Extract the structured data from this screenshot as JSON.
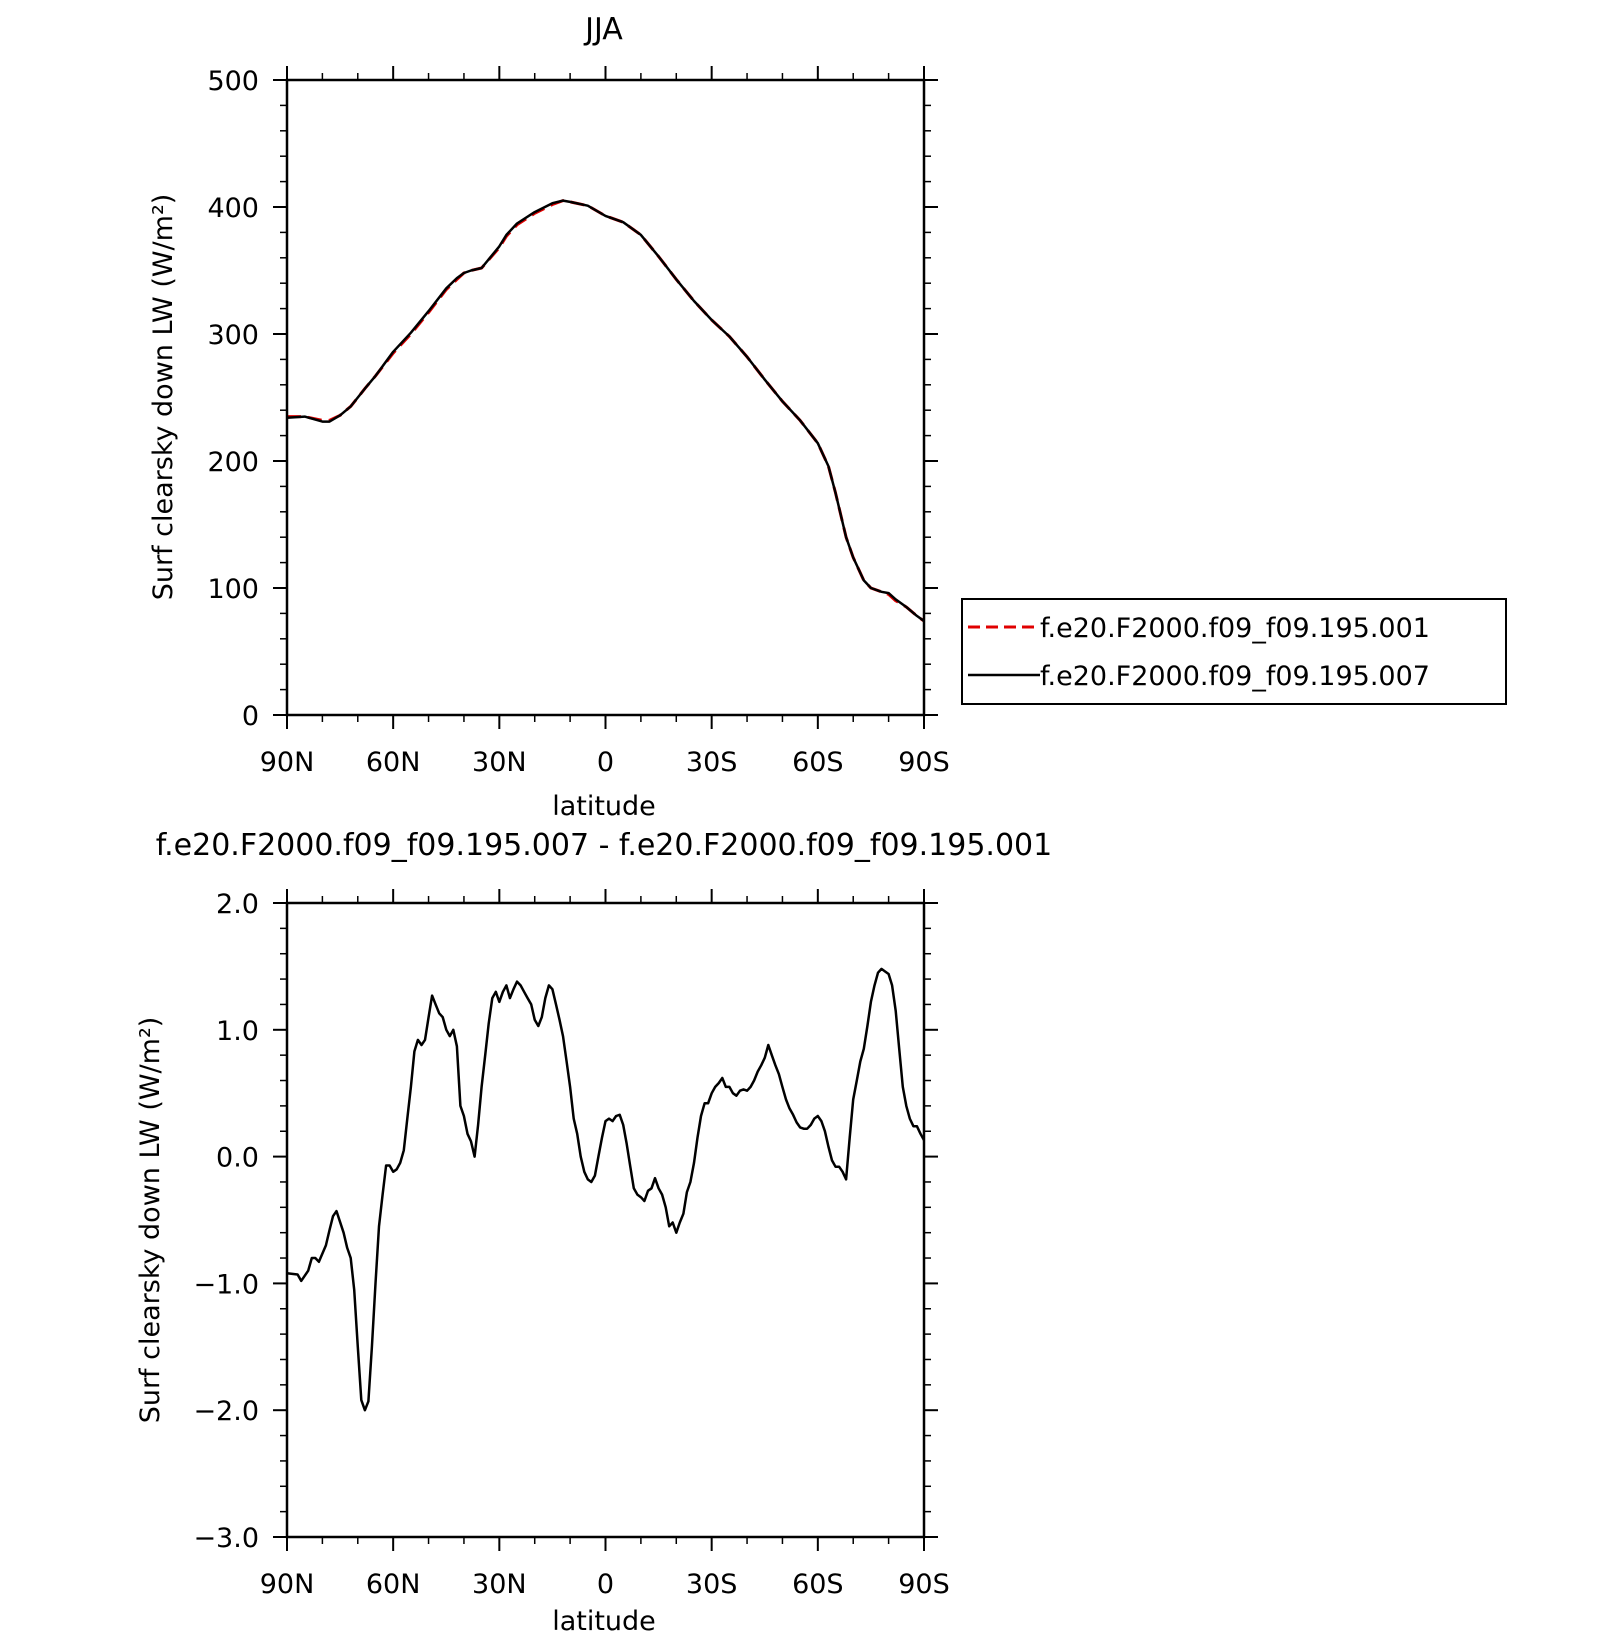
{
  "chart_data": [
    {
      "type": "line",
      "title": "JJA",
      "xlabel": "latitude",
      "ylabel": "Surf clearsky down LW (W/m²)",
      "xlim": [
        90,
        -90
      ],
      "ylim": [
        0,
        500
      ],
      "x_ticks": [
        90,
        60,
        30,
        0,
        -30,
        -60,
        -90
      ],
      "x_tick_labels": [
        "90N",
        "60N",
        "30N",
        "0",
        "30S",
        "60S",
        "90S"
      ],
      "y_ticks": [
        0,
        100,
        200,
        300,
        400,
        500
      ],
      "y_tick_labels": [
        "0",
        "100",
        "200",
        "300",
        "400",
        "500"
      ],
      "grid": false,
      "legend_position": "right",
      "series": [
        {
          "name": "f.e20.F2000.f09_f09.195.001",
          "color": "#e00000",
          "dash": "dashed",
          "x": [
            90,
            85,
            80,
            78,
            75,
            72,
            68,
            65,
            60,
            55,
            50,
            45,
            42,
            40,
            38,
            35,
            30,
            28,
            25,
            20,
            15,
            12,
            10,
            5,
            0,
            -5,
            -10,
            -15,
            -20,
            -25,
            -30,
            -35,
            -40,
            -45,
            -50,
            -55,
            -60,
            -63,
            -65,
            -68,
            -70,
            -73,
            -75,
            -78,
            -80,
            -82,
            -85,
            -88,
            -90
          ],
          "y": [
            235,
            235,
            232,
            232,
            236,
            243,
            257,
            267,
            285,
            300,
            317,
            335,
            343,
            348,
            350,
            352,
            368,
            377,
            386,
            395,
            402,
            405,
            404,
            401,
            393,
            388,
            378,
            361,
            343,
            326,
            311,
            298,
            282,
            264,
            247,
            232,
            214,
            196,
            175,
            140,
            124,
            106,
            100,
            97,
            95,
            90,
            85,
            78,
            74
          ]
        },
        {
          "name": "f.e20.F2000.f09_f09.195.007",
          "color": "#000000",
          "dash": "solid",
          "x": [
            90,
            85,
            80,
            78,
            75,
            72,
            68,
            65,
            60,
            55,
            50,
            45,
            42,
            40,
            38,
            35,
            30,
            28,
            25,
            20,
            15,
            12,
            10,
            5,
            0,
            -5,
            -10,
            -15,
            -20,
            -25,
            -30,
            -35,
            -40,
            -45,
            -50,
            -55,
            -60,
            -63,
            -65,
            -68,
            -70,
            -73,
            -75,
            -78,
            -80,
            -82,
            -85,
            -88,
            -90
          ],
          "y": [
            234,
            235,
            231,
            231,
            236,
            243,
            257,
            267,
            286,
            301,
            318,
            336,
            344,
            348,
            350,
            352,
            369,
            378,
            387,
            396,
            403,
            405,
            404,
            401,
            393,
            388,
            378,
            361,
            343,
            326,
            311,
            298,
            282,
            264,
            247,
            232,
            214,
            196,
            175,
            140,
            124,
            106,
            100,
            97,
            96,
            91,
            85,
            78,
            74
          ]
        }
      ]
    },
    {
      "type": "line",
      "title": "f.e20.F2000.f09_f09.195.007 - f.e20.F2000.f09_f09.195.001",
      "xlabel": "latitude",
      "ylabel": "Surf clearsky down LW (W/m²)",
      "xlim": [
        90,
        -90
      ],
      "ylim": [
        -3.0,
        2.0
      ],
      "x_ticks": [
        90,
        60,
        30,
        0,
        -30,
        -60,
        -90
      ],
      "x_tick_labels": [
        "90N",
        "60N",
        "30N",
        "0",
        "30S",
        "60S",
        "90S"
      ],
      "y_ticks": [
        -3.0,
        -2.0,
        -1.0,
        0.0,
        1.0,
        2.0
      ],
      "y_tick_labels": [
        "−3.0",
        "−2.0",
        "−1.0",
        "0.0",
        "1.0",
        "2.0"
      ],
      "grid": false,
      "series": [
        {
          "color": "#000000",
          "dash": "solid",
          "x": [
            90,
            87,
            86,
            84,
            83,
            82,
            81,
            79,
            78,
            77,
            76,
            74,
            73,
            72,
            71,
            70,
            69,
            68,
            67,
            66,
            65,
            64,
            63,
            62,
            61,
            60,
            59,
            58,
            57,
            56,
            55,
            54,
            53,
            52,
            51,
            50,
            49,
            48,
            47,
            46,
            45,
            44,
            43,
            42,
            41,
            40,
            39,
            38,
            37,
            36,
            35,
            34,
            33,
            32,
            31,
            30,
            29,
            28,
            27,
            26,
            25,
            24,
            23,
            22,
            21,
            20,
            19,
            18,
            17,
            16,
            15,
            14,
            13,
            12,
            11,
            10,
            9,
            8,
            7,
            6,
            5,
            4,
            3,
            2,
            1,
            0,
            -1,
            -2,
            -3,
            -4,
            -5,
            -6,
            -7,
            -8,
            -9,
            -10,
            -11,
            -12,
            -13,
            -14,
            -15,
            -16,
            -17,
            -18,
            -19,
            -20,
            -21,
            -22,
            -23,
            -24,
            -25,
            -26,
            -27,
            -28,
            -29,
            -30,
            -31,
            -32,
            -33,
            -34,
            -35,
            -36,
            -37,
            -38,
            -39,
            -40,
            -41,
            -42,
            -43,
            -44,
            -45,
            -46,
            -47,
            -48,
            -49,
            -50,
            -51,
            -52,
            -53,
            -54,
            -55,
            -56,
            -57,
            -58,
            -59,
            -60,
            -61,
            -62,
            -63,
            -64,
            -65,
            -66,
            -67,
            -68,
            -69,
            -70,
            -71,
            -72,
            -73,
            -74,
            -75,
            -76,
            -77,
            -78,
            -79,
            -80,
            -81,
            -82,
            -83,
            -84,
            -85,
            -86,
            -87,
            -88,
            -89,
            -90
          ],
          "y": [
            -0.92,
            -0.93,
            -0.98,
            -0.9,
            -0.8,
            -0.8,
            -0.83,
            -0.7,
            -0.58,
            -0.47,
            -0.43,
            -0.6,
            -0.72,
            -0.8,
            -1.05,
            -1.5,
            -1.92,
            -2.0,
            -1.93,
            -1.5,
            -1.0,
            -0.55,
            -0.3,
            -0.07,
            -0.07,
            -0.12,
            -0.1,
            -0.05,
            0.05,
            0.3,
            0.55,
            0.83,
            0.92,
            0.88,
            0.92,
            1.1,
            1.27,
            1.2,
            1.13,
            1.1,
            1.0,
            0.95,
            1.0,
            0.87,
            0.4,
            0.32,
            0.18,
            0.12,
            0.0,
            0.25,
            0.55,
            0.8,
            1.05,
            1.25,
            1.3,
            1.22,
            1.3,
            1.35,
            1.25,
            1.32,
            1.38,
            1.35,
            1.3,
            1.25,
            1.2,
            1.08,
            1.03,
            1.1,
            1.25,
            1.35,
            1.32,
            1.2,
            1.08,
            0.95,
            0.75,
            0.55,
            0.3,
            0.18,
            0.0,
            -0.12,
            -0.18,
            -0.2,
            -0.15,
            0.0,
            0.15,
            0.28,
            0.3,
            0.28,
            0.32,
            0.33,
            0.25,
            0.1,
            -0.08,
            -0.25,
            -0.3,
            -0.32,
            -0.35,
            -0.27,
            -0.25,
            -0.17,
            -0.25,
            -0.3,
            -0.4,
            -0.55,
            -0.52,
            -0.6,
            -0.52,
            -0.45,
            -0.28,
            -0.2,
            -0.05,
            0.15,
            0.32,
            0.42,
            0.42,
            0.5,
            0.55,
            0.58,
            0.62,
            0.55,
            0.55,
            0.5,
            0.48,
            0.52,
            0.53,
            0.52,
            0.55,
            0.6,
            0.67,
            0.72,
            0.78,
            0.88,
            0.8,
            0.72,
            0.65,
            0.55,
            0.45,
            0.38,
            0.33,
            0.27,
            0.23,
            0.22,
            0.22,
            0.25,
            0.3,
            0.32,
            0.28,
            0.2,
            0.08,
            -0.03,
            -0.08,
            -0.08,
            -0.12,
            -0.18,
            0.15,
            0.45,
            0.6,
            0.75,
            0.85,
            1.03,
            1.22,
            1.35,
            1.45,
            1.48,
            1.46,
            1.44,
            1.35,
            1.15,
            0.85,
            0.55,
            0.4,
            0.3,
            0.24,
            0.24,
            0.18,
            0.13
          ]
        }
      ]
    }
  ]
}
